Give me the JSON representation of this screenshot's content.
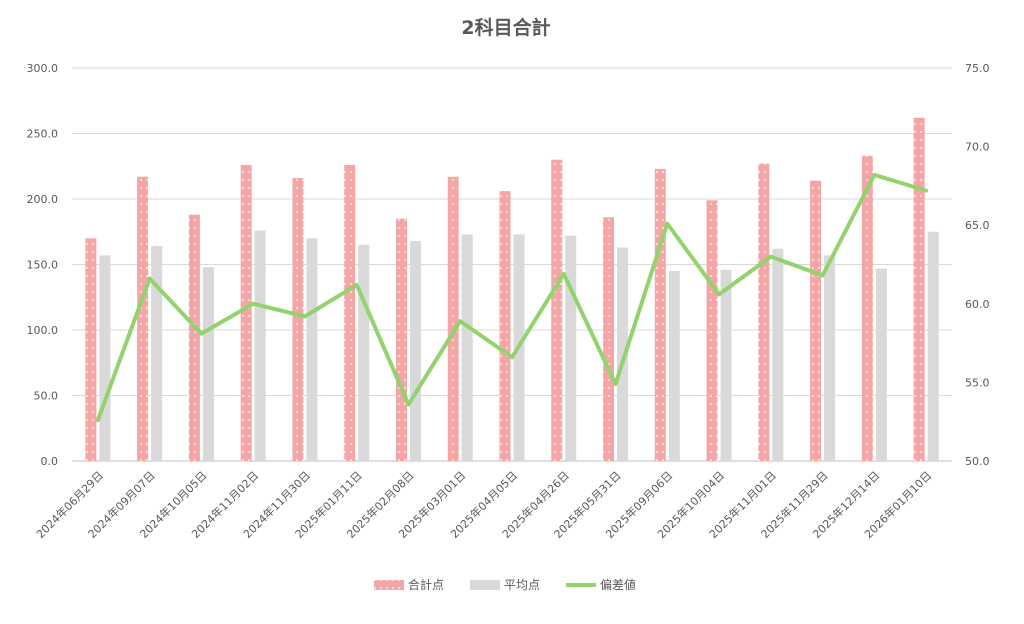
{
  "chart_data": {
    "type": "bar",
    "title": "2科目合計",
    "categories": [
      "2024年06月29日",
      "2024年09月07日",
      "2024年10月05日",
      "2024年11月02日",
      "2024年11月30日",
      "2025年01月11日",
      "2025年02月08日",
      "2025年03月01日",
      "2025年04月05日",
      "2025年04月26日",
      "2025年05月31日",
      "2025年09月06日",
      "2025年10月04日",
      "2025年11月01日",
      "2025年11月29日",
      "2025年12月14日",
      "2026年01月10日"
    ],
    "series": [
      {
        "name": "合計点",
        "type": "bar",
        "axis": "left",
        "color": "#f4a6a6",
        "values": [
          170,
          217,
          188,
          226,
          216,
          226,
          185,
          217,
          206,
          230,
          186,
          223,
          199,
          227,
          214,
          233,
          262
        ]
      },
      {
        "name": "平均点",
        "type": "bar",
        "axis": "left",
        "color": "#d9d9d9",
        "values": [
          157,
          164,
          148,
          176,
          170,
          165,
          168,
          173,
          173,
          172,
          163,
          145,
          146,
          162,
          157,
          147,
          175
        ]
      },
      {
        "name": "偏差値",
        "type": "line",
        "axis": "right",
        "color": "#92d36e",
        "values": [
          52.6,
          61.6,
          58.1,
          60.0,
          59.2,
          61.2,
          53.6,
          58.9,
          56.6,
          61.9,
          54.9,
          65.1,
          60.6,
          63.0,
          61.8,
          68.2,
          67.2
        ]
      }
    ],
    "y_left": {
      "min": 0,
      "max": 300,
      "step": 50,
      "ticks": [
        "0.0",
        "50.0",
        "100.0",
        "150.0",
        "200.0",
        "250.0",
        "300.0"
      ]
    },
    "y_right": {
      "min": 50,
      "max": 75,
      "step": 5,
      "ticks": [
        "50.0",
        "55.0",
        "60.0",
        "65.0",
        "70.0",
        "75.0"
      ]
    },
    "grid": true,
    "legend_position": "bottom"
  }
}
